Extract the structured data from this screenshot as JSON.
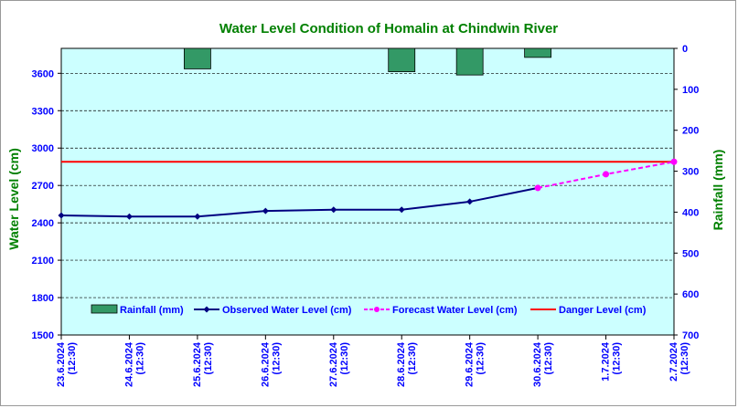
{
  "chart_data": {
    "type": "line",
    "title": "Water Level Condition of Homalin at Chindwin River",
    "ylabel": "Water Level (cm)",
    "y2label": "Rainfall (mm)",
    "ylim": [
      1500,
      3800
    ],
    "y_ticks": [
      1500,
      1800,
      2100,
      2400,
      2700,
      3000,
      3300,
      3600
    ],
    "y2lim": [
      0,
      700
    ],
    "y2_ticks": [
      0,
      100,
      200,
      300,
      400,
      500,
      600,
      700
    ],
    "y2_inverted": true,
    "categories": [
      "23.6.2024\n(12:30)",
      "24.6.2024\n(12:30)",
      "25.6.2024\n(12:30)",
      "26.6.2024\n(12:30)",
      "27.6.2024\n(12:30)",
      "28.6.2024\n(12:30)",
      "29.6.2024\n(12:30)",
      "30.6.2024\n(12:30)",
      "1.7.2024\n(12:30)",
      "2.7.2024\n(12:30)"
    ],
    "legend_position": "bottom",
    "grid": "horizontal-dashed",
    "series": [
      {
        "name": "Rainfall (mm)",
        "type": "bar",
        "axis": "right",
        "color": "#339966",
        "values": [
          0,
          0,
          50,
          0,
          0,
          57,
          65,
          22,
          0,
          0
        ]
      },
      {
        "name": "Observed Water Level (cm)",
        "type": "line",
        "axis": "left",
        "color": "#000080",
        "marker": "diamond",
        "values": [
          2460,
          2450,
          2450,
          2495,
          2505,
          2505,
          2570,
          2680,
          null,
          null
        ]
      },
      {
        "name": "Forecast Water Level (cm)",
        "type": "line",
        "axis": "left",
        "color": "#ff00ff",
        "dashed": true,
        "marker": "circle",
        "values": [
          null,
          null,
          null,
          null,
          null,
          null,
          null,
          2680,
          2790,
          2890
        ]
      },
      {
        "name": "Danger Level (cm)",
        "type": "hline",
        "axis": "left",
        "color": "#ff0000",
        "value": 2890
      }
    ],
    "colors": {
      "plot_bg": "#ccffff",
      "title": "#008000",
      "axis_text": "#0000ff",
      "axis_title": "#008000"
    }
  }
}
